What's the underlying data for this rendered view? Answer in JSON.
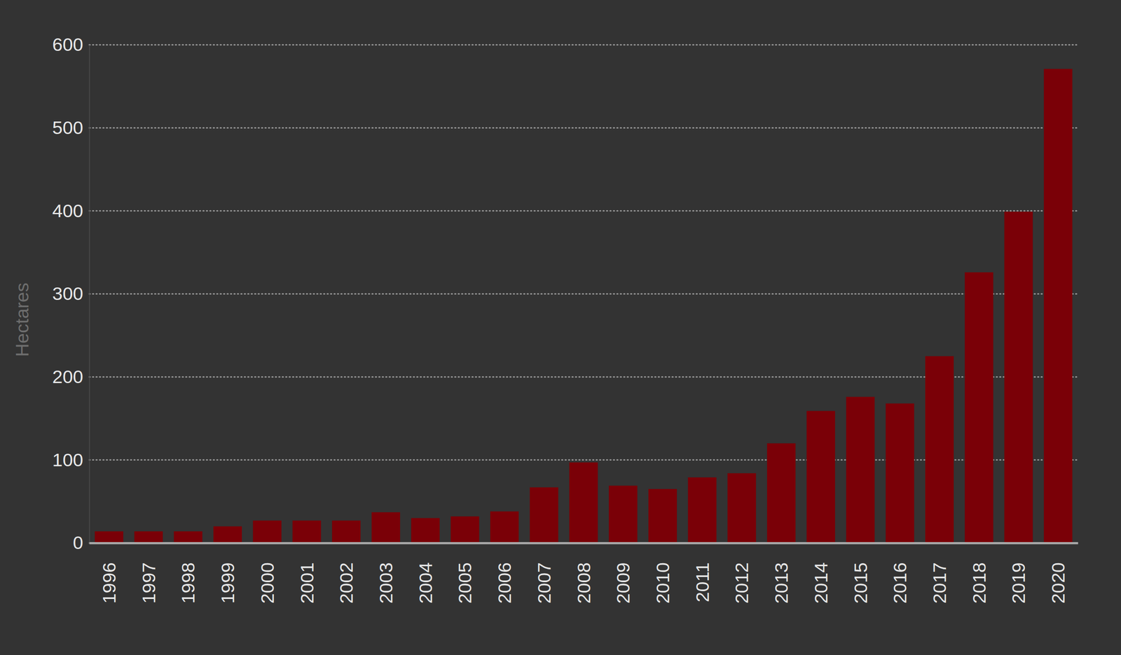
{
  "chart_data": {
    "type": "bar",
    "y_label": "Hectares",
    "categories": [
      "1996",
      "1997",
      "1998",
      "1999",
      "2000",
      "2001",
      "2002",
      "2003",
      "2004",
      "2005",
      "2006",
      "2007",
      "2008",
      "2009",
      "2010",
      "2011",
      "2012",
      "2013",
      "2014",
      "2015",
      "2016",
      "2017",
      "2018",
      "2019",
      "2020"
    ],
    "values": [
      14,
      14,
      14,
      20,
      27,
      27,
      27,
      37,
      30,
      32,
      38,
      67,
      97,
      69,
      65,
      79,
      84,
      120,
      159,
      176,
      168,
      225,
      326,
      399,
      571
    ],
    "color": "#7a0007",
    "ylim": [
      0,
      600
    ],
    "yticks": [
      0,
      100,
      200,
      300,
      400,
      500,
      600
    ],
    "grid": true
  }
}
